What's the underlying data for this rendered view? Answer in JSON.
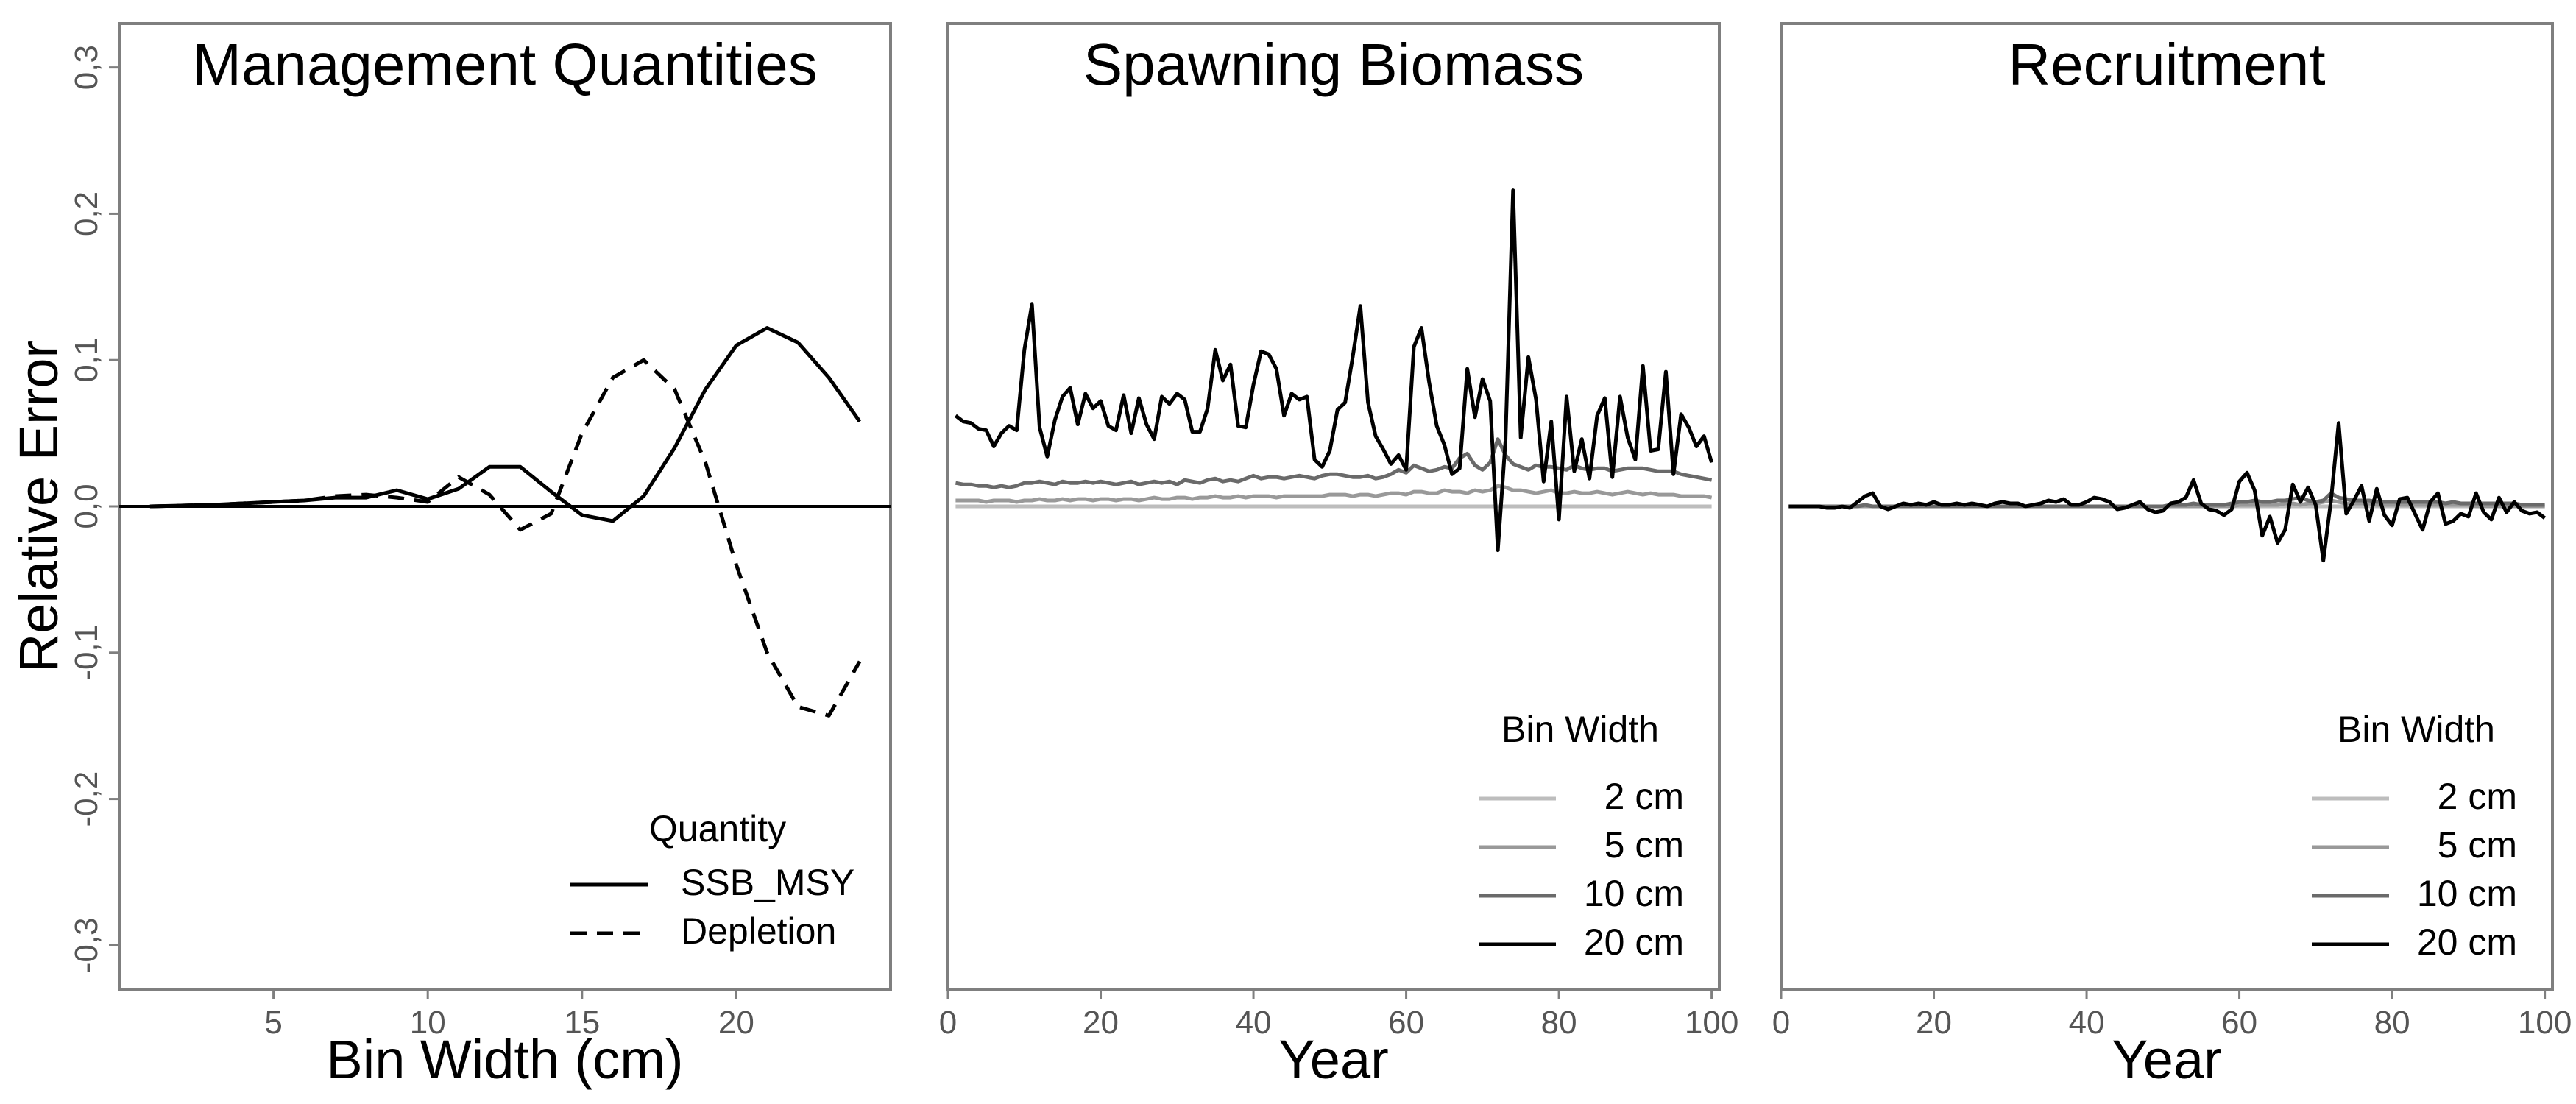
{
  "colors": {
    "frame": "#7f7f7f",
    "tick_text": "#555555",
    "zero_line": "#000000",
    "bin_2cm": "#bdbdbd",
    "bin_5cm": "#999999",
    "bin_10cm": "#6a6a6a",
    "bin_20cm": "#000000"
  },
  "chart_data": [
    {
      "type": "line",
      "title": "Management Quantities",
      "xlabel": "Bin Width (cm)",
      "ylabel": "Relative Error",
      "xlim": [
        0,
        25
      ],
      "ylim": [
        -0.33,
        0.33
      ],
      "xticks": [
        5,
        10,
        15,
        20
      ],
      "yticks": [
        -0.3,
        -0.2,
        -0.1,
        0.0,
        0.1,
        0.2,
        0.3
      ],
      "ytick_labels": [
        "-0,3",
        "-0,2",
        "-0,1",
        "0,0",
        "0,1",
        "0,2",
        "0,3"
      ],
      "reference_line": 0,
      "legend": {
        "title": "Quantity",
        "position": "bottom-right"
      },
      "x": [
        1,
        2,
        3,
        4,
        5,
        6,
        7,
        8,
        9,
        10,
        11,
        12,
        13,
        14,
        15,
        16,
        17,
        18,
        19,
        20,
        21,
        22,
        23,
        24
      ],
      "series": [
        {
          "name": "SSB_MSY",
          "dash": "solid",
          "color": "#000000",
          "values": [
            0,
            0.0005,
            0.001,
            0.002,
            0.003,
            0.004,
            0.006,
            0.006,
            0.011,
            0.005,
            0.012,
            0.027,
            0.027,
            0.01,
            -0.006,
            -0.01,
            0.007,
            0.04,
            0.08,
            0.11,
            0.122,
            0.112,
            0.088,
            0.058
          ]
        },
        {
          "name": "Depletion",
          "dash": "dashed",
          "color": "#000000",
          "values": [
            0,
            0.0005,
            0.001,
            0.002,
            0.003,
            0.004,
            0.007,
            0.008,
            0.006,
            0.003,
            0.02,
            0.008,
            -0.016,
            -0.005,
            0.05,
            0.088,
            0.1,
            0.08,
            0.03,
            -0.04,
            -0.1,
            -0.137,
            -0.143,
            -0.106
          ]
        }
      ]
    },
    {
      "type": "line",
      "title": "Spawning Biomass",
      "xlabel": "Year",
      "ylabel": "",
      "xlim": [
        0,
        101
      ],
      "ylim": [
        -0.33,
        0.33
      ],
      "xticks": [
        0,
        20,
        40,
        60,
        80,
        100
      ],
      "legend": {
        "title": "Bin Width",
        "position": "bottom-right"
      },
      "x_start": 1,
      "x_end": 100,
      "series": [
        {
          "name": "2 cm",
          "color": "#bdbdbd",
          "values": [
            0,
            0,
            0,
            0,
            0,
            0,
            0,
            0,
            0,
            0,
            0,
            0,
            0,
            0,
            0,
            0,
            0,
            0,
            0,
            0,
            0,
            0,
            0,
            0,
            0,
            0,
            0,
            0,
            0,
            0,
            0,
            0,
            0,
            0,
            0,
            0,
            0,
            0,
            0,
            0,
            0,
            0,
            0,
            0,
            0,
            0,
            0,
            0,
            0,
            0,
            0,
            0,
            0,
            0,
            0,
            0,
            0,
            0,
            0,
            0,
            0,
            0,
            0,
            0,
            0,
            0,
            0,
            0,
            0,
            0,
            0,
            0,
            0,
            0,
            0,
            0,
            0,
            0,
            0,
            0,
            0,
            0,
            0,
            0,
            0,
            0,
            0,
            0,
            0,
            0,
            0,
            0,
            0,
            0,
            0,
            0,
            0,
            0,
            0,
            0
          ]
        },
        {
          "name": "5 cm",
          "color": "#999999",
          "values": [
            0.004,
            0.004,
            0.004,
            0.004,
            0.003,
            0.004,
            0.004,
            0.004,
            0.003,
            0.004,
            0.004,
            0.005,
            0.004,
            0.004,
            0.005,
            0.004,
            0.005,
            0.005,
            0.004,
            0.005,
            0.005,
            0.004,
            0.005,
            0.005,
            0.004,
            0.005,
            0.006,
            0.005,
            0.005,
            0.006,
            0.006,
            0.005,
            0.006,
            0.006,
            0.007,
            0.006,
            0.006,
            0.007,
            0.006,
            0.007,
            0.007,
            0.007,
            0.006,
            0.007,
            0.007,
            0.007,
            0.007,
            0.007,
            0.007,
            0.008,
            0.008,
            0.008,
            0.007,
            0.008,
            0.008,
            0.007,
            0.008,
            0.009,
            0.009,
            0.008,
            0.01,
            0.01,
            0.009,
            0.009,
            0.011,
            0.01,
            0.01,
            0.009,
            0.011,
            0.01,
            0.011,
            0.014,
            0.013,
            0.011,
            0.011,
            0.01,
            0.009,
            0.01,
            0.011,
            0.009,
            0.009,
            0.01,
            0.009,
            0.009,
            0.01,
            0.009,
            0.008,
            0.009,
            0.01,
            0.009,
            0.008,
            0.009,
            0.008,
            0.008,
            0.008,
            0.007,
            0.007,
            0.007,
            0.007,
            0.006
          ]
        },
        {
          "name": "10 cm",
          "color": "#6a6a6a",
          "values": [
            0.016,
            0.015,
            0.015,
            0.014,
            0.014,
            0.013,
            0.014,
            0.013,
            0.014,
            0.016,
            0.016,
            0.017,
            0.016,
            0.015,
            0.017,
            0.016,
            0.016,
            0.017,
            0.016,
            0.017,
            0.016,
            0.015,
            0.016,
            0.017,
            0.015,
            0.016,
            0.017,
            0.016,
            0.017,
            0.015,
            0.018,
            0.017,
            0.016,
            0.018,
            0.019,
            0.017,
            0.018,
            0.017,
            0.019,
            0.021,
            0.019,
            0.02,
            0.02,
            0.019,
            0.02,
            0.021,
            0.02,
            0.019,
            0.021,
            0.022,
            0.022,
            0.021,
            0.02,
            0.02,
            0.021,
            0.019,
            0.02,
            0.022,
            0.025,
            0.023,
            0.028,
            0.026,
            0.024,
            0.025,
            0.027,
            0.026,
            0.033,
            0.036,
            0.028,
            0.025,
            0.03,
            0.046,
            0.035,
            0.029,
            0.027,
            0.025,
            0.028,
            0.027,
            0.027,
            0.026,
            0.025,
            0.028,
            0.026,
            0.025,
            0.026,
            0.026,
            0.024,
            0.025,
            0.026,
            0.026,
            0.026,
            0.025,
            0.024,
            0.024,
            0.024,
            0.022,
            0.021,
            0.02,
            0.019,
            0.018
          ]
        },
        {
          "name": "20 cm",
          "color": "#000000",
          "values": [
            0.062,
            0.058,
            0.057,
            0.053,
            0.052,
            0.041,
            0.05,
            0.055,
            0.052,
            0.107,
            0.138,
            0.054,
            0.034,
            0.059,
            0.075,
            0.081,
            0.056,
            0.077,
            0.067,
            0.072,
            0.055,
            0.052,
            0.076,
            0.05,
            0.074,
            0.056,
            0.046,
            0.075,
            0.07,
            0.077,
            0.073,
            0.051,
            0.051,
            0.067,
            0.107,
            0.086,
            0.097,
            0.055,
            0.054,
            0.083,
            0.106,
            0.104,
            0.094,
            0.062,
            0.077,
            0.073,
            0.075,
            0.032,
            0.027,
            0.038,
            0.066,
            0.071,
            0.102,
            0.137,
            0.071,
            0.048,
            0.039,
            0.029,
            0.035,
            0.025,
            0.109,
            0.122,
            0.085,
            0.055,
            0.042,
            0.022,
            0.026,
            0.094,
            0.061,
            0.087,
            0.072,
            -0.03,
            0.045,
            0.216,
            0.047,
            0.102,
            0.073,
            0.017,
            0.058,
            -0.009,
            0.075,
            0.024,
            0.046,
            0.019,
            0.062,
            0.074,
            0.02,
            0.075,
            0.047,
            0.032,
            0.096,
            0.038,
            0.039,
            0.092,
            0.022,
            0.063,
            0.054,
            0.041,
            0.048,
            0.03
          ]
        }
      ]
    },
    {
      "type": "line",
      "title": "Recruitment",
      "xlabel": "Year",
      "ylabel": "",
      "xlim": [
        0,
        101
      ],
      "ylim": [
        -0.33,
        0.33
      ],
      "xticks": [
        0,
        20,
        40,
        60,
        80,
        100
      ],
      "legend": {
        "title": "Bin Width",
        "position": "bottom-right"
      },
      "x_start": 1,
      "x_end": 100,
      "series": [
        {
          "name": "2 cm",
          "color": "#bdbdbd",
          "values": [
            0,
            0,
            0,
            0,
            0,
            0,
            0,
            0,
            0,
            0,
            0,
            0,
            0,
            0,
            0,
            0,
            0,
            0,
            0,
            0,
            0,
            0,
            0,
            0,
            0,
            0,
            0,
            0,
            0,
            0,
            0,
            0,
            0,
            0,
            0,
            0,
            0,
            0,
            0,
            0,
            0,
            0,
            0,
            0,
            0,
            0,
            0,
            0,
            0,
            0,
            0,
            0,
            0,
            0,
            0,
            0,
            0,
            0,
            0,
            0,
            0,
            0,
            0,
            0,
            0,
            0,
            0,
            0,
            0,
            0,
            0,
            0,
            0,
            0,
            0,
            0,
            0,
            0,
            0,
            0,
            0,
            0,
            0,
            0,
            0,
            0,
            0,
            0,
            0,
            0,
            0,
            0,
            0,
            0,
            0,
            0,
            0,
            0,
            0,
            0
          ]
        },
        {
          "name": "5 cm",
          "color": "#999999",
          "values": [
            0,
            0,
            0,
            0,
            0,
            0,
            0,
            0,
            0,
            0,
            0,
            0,
            0,
            0,
            0,
            0,
            0,
            0,
            0,
            0,
            0,
            0,
            0,
            0,
            0,
            0,
            0,
            0,
            0,
            0,
            0,
            0,
            0,
            0,
            0,
            0,
            0,
            0,
            0,
            0,
            0,
            0,
            0,
            0,
            0,
            0,
            0,
            0,
            0,
            0,
            0,
            0,
            0,
            0,
            0,
            0,
            0,
            0,
            0,
            0.001,
            0.001,
            0.001,
            0.001,
            0.001,
            0.001,
            0.002,
            0.002,
            0.001,
            0.002,
            0.002,
            0.003,
            0.004,
            0.003,
            0.002,
            0.002,
            0.002,
            0.002,
            0.001,
            0.001,
            0.001,
            0.001,
            0.001,
            0.001,
            0.001,
            0.001,
            0.001,
            0.001,
            0.001,
            0.001,
            0.001,
            0,
            0,
            0,
            0,
            0,
            0,
            0,
            0,
            0,
            0
          ]
        },
        {
          "name": "10 cm",
          "color": "#6a6a6a",
          "values": [
            0,
            0,
            0,
            0,
            0,
            0,
            0,
            0,
            0,
            0,
            0.001,
            0,
            0,
            0,
            0,
            0,
            0,
            0,
            0,
            0,
            0,
            0,
            0,
            0,
            0,
            0,
            0,
            0,
            0,
            0,
            0,
            0,
            0,
            0,
            0,
            0,
            0,
            0,
            0,
            0,
            0,
            0,
            0,
            0,
            0,
            0,
            0,
            0,
            0,
            0,
            0.001,
            0.001,
            0.001,
            0.002,
            0.001,
            0.001,
            0.001,
            0.001,
            0.002,
            0.003,
            0.003,
            0.004,
            0.003,
            0.003,
            0.004,
            0.004,
            0.005,
            0.006,
            0.004,
            0.003,
            0.004,
            0.009,
            0.006,
            0.005,
            0.004,
            0.004,
            0.004,
            0.003,
            0.003,
            0.003,
            0.003,
            0.003,
            0.003,
            0.003,
            0.003,
            0.003,
            0.002,
            0.003,
            0.002,
            0.002,
            0.002,
            0.002,
            0.002,
            0.002,
            0.002,
            0.002,
            0.001,
            0.001,
            0.001,
            0.001
          ]
        },
        {
          "name": "20 cm",
          "color": "#000000",
          "values": [
            0,
            0,
            0,
            0,
            0,
            -0.001,
            -0.001,
            0,
            -0.001,
            0.003,
            0.007,
            0.009,
            0,
            -0.002,
            0,
            0.002,
            0.001,
            0.002,
            0.001,
            0.003,
            0.001,
            0.001,
            0.002,
            0.001,
            0.002,
            0.001,
            0,
            0.002,
            0.003,
            0.002,
            0.002,
            0,
            0.001,
            0.002,
            0.004,
            0.003,
            0.005,
            0.001,
            0.001,
            0.003,
            0.006,
            0.005,
            0.003,
            -0.002,
            -0.001,
            0.001,
            0.003,
            -0.002,
            -0.004,
            -0.003,
            0.002,
            0.003,
            0.006,
            0.018,
            0.002,
            -0.002,
            -0.003,
            -0.006,
            -0.002,
            0.017,
            0.023,
            0.011,
            -0.02,
            -0.007,
            -0.025,
            -0.016,
            0.015,
            0.003,
            0.013,
            0.001,
            -0.037,
            0.004,
            0.057,
            -0.005,
            0.004,
            0.014,
            -0.01,
            0.012,
            -0.006,
            -0.013,
            0.005,
            0.006,
            -0.005,
            -0.016,
            0.003,
            0.009,
            -0.012,
            -0.01,
            -0.005,
            -0.007,
            0.009,
            -0.004,
            -0.009,
            0.006,
            -0.004,
            0.003,
            -0.003,
            -0.005,
            -0.004,
            -0.008
          ]
        }
      ]
    }
  ]
}
